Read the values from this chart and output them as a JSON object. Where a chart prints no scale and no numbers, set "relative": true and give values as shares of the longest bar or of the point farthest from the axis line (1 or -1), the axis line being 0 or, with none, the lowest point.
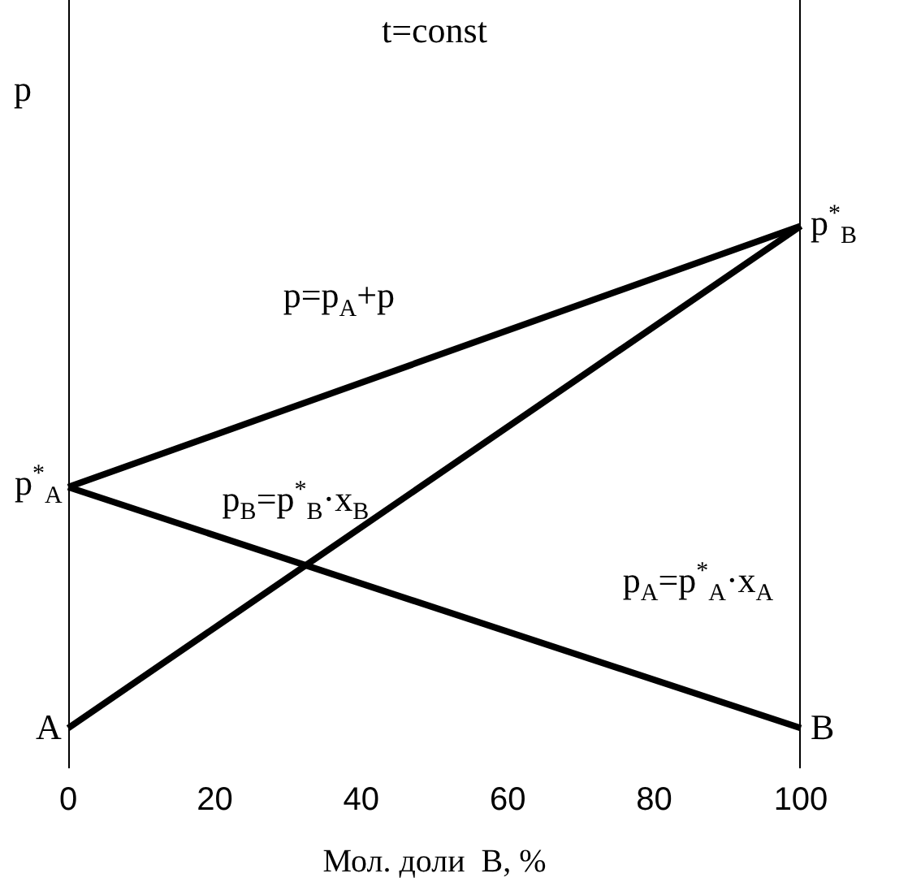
{
  "chart_data": {
    "type": "line",
    "title": "t=const",
    "xlabel": "Мол. доли  B, %",
    "ylabel": "p",
    "relative": true,
    "x": [
      0,
      100
    ],
    "xlim": [
      0,
      100
    ],
    "xticks": [
      0,
      20,
      40,
      60,
      80,
      100
    ],
    "grid": false,
    "legend": false,
    "marker": "none",
    "line_style": "solid",
    "series": [
      {
        "color": "#000000",
        "values": [
          0.48,
          1
        ]
      },
      {
        "color": "#000000",
        "values": [
          0.48,
          0
        ]
      },
      {
        "color": "#000000",
        "values": [
          0,
          1
        ]
      }
    ],
    "annotations": [
      "p$^{*}$$_{A}$",
      "p$^{*}$$_{B}$",
      "A",
      "B",
      "p=p$_{A}$+p",
      "p$_{B}$=p$^{*}$$_{B}$·x$_{B}$",
      "p$_{A}$=p$^{*}$$_{A}$·x$_{A}$"
    ]
  }
}
